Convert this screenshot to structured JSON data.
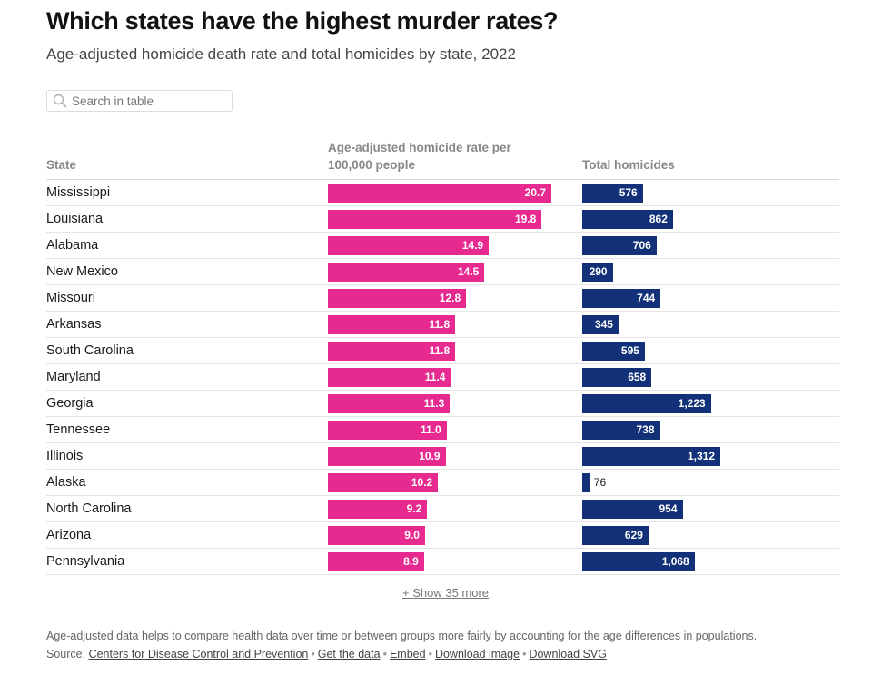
{
  "header": {
    "title": "Which states have the highest murder rates?",
    "subtitle": "Age-adjusted homicide death rate and total homicides by state, 2022"
  },
  "search": {
    "placeholder": "Search in table"
  },
  "colors": {
    "rate_bar": "#e62a8f",
    "total_bar": "#123178"
  },
  "chart_data": {
    "type": "table",
    "title": "Which states have the highest murder rates?",
    "subtitle": "Age-adjusted homicide death rate and total homicides by state, 2022",
    "columns": {
      "state": "State",
      "rate": "Age-adjusted homicide rate per 100,000 people",
      "total": "Total homicides"
    },
    "rows": [
      {
        "state": "Mississippi",
        "rate": 20.7,
        "rate_label": "20.7",
        "total": 576,
        "total_label": "576"
      },
      {
        "state": "Louisiana",
        "rate": 19.8,
        "rate_label": "19.8",
        "total": 862,
        "total_label": "862"
      },
      {
        "state": "Alabama",
        "rate": 14.9,
        "rate_label": "14.9",
        "total": 706,
        "total_label": "706"
      },
      {
        "state": "New Mexico",
        "rate": 14.5,
        "rate_label": "14.5",
        "total": 290,
        "total_label": "290"
      },
      {
        "state": "Missouri",
        "rate": 12.8,
        "rate_label": "12.8",
        "total": 744,
        "total_label": "744"
      },
      {
        "state": "Arkansas",
        "rate": 11.8,
        "rate_label": "11.8",
        "total": 345,
        "total_label": "345"
      },
      {
        "state": "South Carolina",
        "rate": 11.8,
        "rate_label": "11.8",
        "total": 595,
        "total_label": "595"
      },
      {
        "state": "Maryland",
        "rate": 11.4,
        "rate_label": "11.4",
        "total": 658,
        "total_label": "658"
      },
      {
        "state": "Georgia",
        "rate": 11.3,
        "rate_label": "11.3",
        "total": 1223,
        "total_label": "1,223"
      },
      {
        "state": "Tennessee",
        "rate": 11.0,
        "rate_label": "11.0",
        "total": 738,
        "total_label": "738"
      },
      {
        "state": "Illinois",
        "rate": 10.9,
        "rate_label": "10.9",
        "total": 1312,
        "total_label": "1,312"
      },
      {
        "state": "Alaska",
        "rate": 10.2,
        "rate_label": "10.2",
        "total": 76,
        "total_label": "76"
      },
      {
        "state": "North Carolina",
        "rate": 9.2,
        "rate_label": "9.2",
        "total": 954,
        "total_label": "954"
      },
      {
        "state": "Arizona",
        "rate": 9.0,
        "rate_label": "9.0",
        "total": 629,
        "total_label": "629"
      },
      {
        "state": "Pennsylvania",
        "rate": 8.9,
        "rate_label": "8.9",
        "total": 1068,
        "total_label": "1,068"
      }
    ],
    "rate_max": 20.7,
    "total_max": 1312
  },
  "show_more": "+ Show 35 more",
  "footer": {
    "note": "Age-adjusted data helps to compare health data over time or between groups more fairly by accounting for the age differences in populations.",
    "source_prefix": "Source: ",
    "source_link": "Centers for Disease Control and Prevention",
    "get_data": "Get the data",
    "embed": "Embed",
    "download_image": "Download image",
    "download_svg": "Download SVG",
    "separator": "•"
  }
}
